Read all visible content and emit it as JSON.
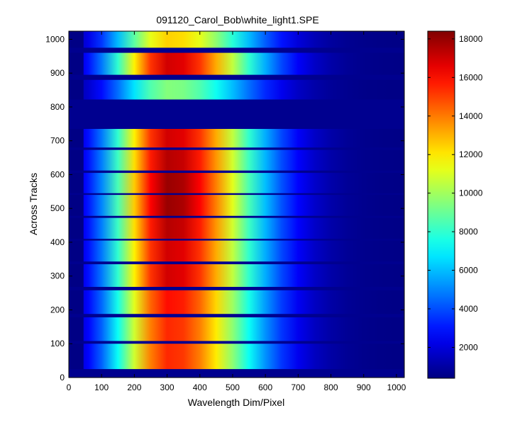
{
  "chart_data": {
    "type": "heatmap",
    "title": "091120_Carol_Bob\\white_light1.SPE",
    "xlabel": "Wavelength Dim/Pixel",
    "ylabel": "Across Tracks",
    "xlim": [
      0,
      1024
    ],
    "ylim": [
      0,
      1024
    ],
    "x_ticks": [
      0,
      100,
      200,
      300,
      400,
      500,
      600,
      700,
      800,
      900,
      1000
    ],
    "y_ticks": [
      0,
      100,
      200,
      300,
      400,
      500,
      600,
      700,
      800,
      900,
      1000
    ],
    "colormap": "jet",
    "colorbar": {
      "min": 400,
      "max": 18400,
      "ticks": [
        2000,
        4000,
        6000,
        8000,
        10000,
        12000,
        14000,
        16000,
        18000
      ]
    },
    "background_level": 500,
    "peak_wavelength_pixel": 310,
    "signal_x_range": [
      45,
      1024
    ],
    "tracks": [
      {
        "y_start": 25,
        "y_end": 100,
        "peak": 15500
      },
      {
        "y_start": 108,
        "y_end": 178,
        "peak": 15500
      },
      {
        "y_start": 188,
        "y_end": 258,
        "peak": 16000
      },
      {
        "y_start": 268,
        "y_end": 335,
        "peak": 17000
      },
      {
        "y_start": 343,
        "y_end": 405,
        "peak": 17000
      },
      {
        "y_start": 410,
        "y_end": 472,
        "peak": 17500
      },
      {
        "y_start": 478,
        "y_end": 540,
        "peak": 18000
      },
      {
        "y_start": 545,
        "y_end": 605,
        "peak": 18000
      },
      {
        "y_start": 612,
        "y_end": 673,
        "peak": 17500
      },
      {
        "y_start": 680,
        "y_end": 735,
        "peak": 17000
      },
      {
        "y_start": 822,
        "y_end": 880,
        "peak": 9500
      },
      {
        "y_start": 895,
        "y_end": 960,
        "peak": 17000
      },
      {
        "y_start": 975,
        "y_end": 1024,
        "peak": 12500
      }
    ]
  }
}
